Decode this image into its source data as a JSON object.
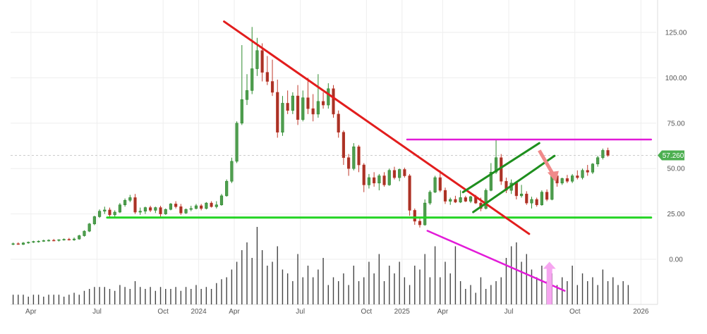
{
  "chart_data": {
    "type": "candlestick",
    "title": "",
    "grid": true,
    "colors": {
      "up": "#2e8b2e",
      "down": "#c0392b",
      "up_fill": "#4f9d4f",
      "down_fill": "#a83226",
      "volume": "#444444",
      "grid": "#eeeeee"
    },
    "y_axis": {
      "position": "right",
      "ticks": [
        "125.00",
        "100.00",
        "75.00",
        "50.00",
        "25.00",
        "0.00"
      ],
      "range": [
        -25,
        145
      ]
    },
    "x_axis": {
      "ticks": [
        "Apr",
        "Jul",
        "Oct",
        "2024",
        "Apr",
        "Jul",
        "Oct",
        "2025",
        "Apr",
        "Jul",
        "Oct",
        "2026"
      ]
    },
    "last_price": {
      "label": "57.260",
      "value": 57.26,
      "color": "#4caf50"
    },
    "candles": [
      {
        "o": 8.5,
        "h": 9.2,
        "l": 7.8,
        "c": 8.6
      },
      {
        "o": 8.6,
        "h": 9.3,
        "l": 8.0,
        "c": 8.2
      },
      {
        "o": 8.2,
        "h": 9.5,
        "l": 7.9,
        "c": 9.0
      },
      {
        "o": 9.0,
        "h": 9.8,
        "l": 8.6,
        "c": 9.4
      },
      {
        "o": 9.4,
        "h": 10.2,
        "l": 9.0,
        "c": 9.8
      },
      {
        "o": 9.8,
        "h": 10.4,
        "l": 9.2,
        "c": 10.0
      },
      {
        "o": 10.0,
        "h": 10.8,
        "l": 9.6,
        "c": 10.3
      },
      {
        "o": 10.3,
        "h": 11.0,
        "l": 9.8,
        "c": 10.5
      },
      {
        "o": 10.5,
        "h": 11.2,
        "l": 10.0,
        "c": 10.4
      },
      {
        "o": 10.4,
        "h": 11.0,
        "l": 9.8,
        "c": 10.8
      },
      {
        "o": 10.8,
        "h": 11.5,
        "l": 10.3,
        "c": 11.0
      },
      {
        "o": 11.0,
        "h": 11.8,
        "l": 10.4,
        "c": 10.7
      },
      {
        "o": 10.7,
        "h": 12.0,
        "l": 10.2,
        "c": 11.2
      },
      {
        "o": 11.2,
        "h": 13.5,
        "l": 10.8,
        "c": 13.0
      },
      {
        "o": 13.0,
        "h": 16.0,
        "l": 12.5,
        "c": 15.5
      },
      {
        "o": 15.5,
        "h": 20.0,
        "l": 15.0,
        "c": 19.5
      },
      {
        "o": 19.5,
        "h": 24.0,
        "l": 18.8,
        "c": 23.5
      },
      {
        "o": 23.5,
        "h": 27.5,
        "l": 22.8,
        "c": 26.5
      },
      {
        "o": 26.5,
        "h": 29.0,
        "l": 25.0,
        "c": 27.2
      },
      {
        "o": 27.2,
        "h": 28.5,
        "l": 22.5,
        "c": 24.5
      },
      {
        "o": 24.5,
        "h": 27.0,
        "l": 23.0,
        "c": 26.0
      },
      {
        "o": 26.0,
        "h": 31.0,
        "l": 25.5,
        "c": 30.0
      },
      {
        "o": 30.0,
        "h": 33.5,
        "l": 29.0,
        "c": 32.5
      },
      {
        "o": 32.5,
        "h": 35.5,
        "l": 31.5,
        "c": 34.0
      },
      {
        "o": 34.0,
        "h": 36.0,
        "l": 25.0,
        "c": 26.0
      },
      {
        "o": 26.0,
        "h": 28.5,
        "l": 24.5,
        "c": 26.5
      },
      {
        "o": 26.5,
        "h": 29.0,
        "l": 25.0,
        "c": 28.5
      },
      {
        "o": 28.5,
        "h": 29.5,
        "l": 26.0,
        "c": 27.0
      },
      {
        "o": 27.0,
        "h": 29.0,
        "l": 25.5,
        "c": 28.5
      },
      {
        "o": 28.5,
        "h": 29.5,
        "l": 23.5,
        "c": 25.0
      },
      {
        "o": 25.0,
        "h": 28.0,
        "l": 24.5,
        "c": 27.5
      },
      {
        "o": 27.5,
        "h": 31.0,
        "l": 27.0,
        "c": 30.5
      },
      {
        "o": 30.5,
        "h": 32.0,
        "l": 28.0,
        "c": 29.0
      },
      {
        "o": 29.0,
        "h": 30.5,
        "l": 24.5,
        "c": 25.5
      },
      {
        "o": 25.5,
        "h": 28.0,
        "l": 25.0,
        "c": 27.5
      },
      {
        "o": 27.5,
        "h": 29.5,
        "l": 26.5,
        "c": 28.0
      },
      {
        "o": 28.0,
        "h": 30.5,
        "l": 27.5,
        "c": 29.5
      },
      {
        "o": 29.5,
        "h": 30.5,
        "l": 27.0,
        "c": 28.0
      },
      {
        "o": 28.0,
        "h": 31.5,
        "l": 27.5,
        "c": 31.0
      },
      {
        "o": 31.0,
        "h": 32.0,
        "l": 28.5,
        "c": 29.0
      },
      {
        "o": 29.0,
        "h": 32.0,
        "l": 28.0,
        "c": 30.0
      },
      {
        "o": 30.0,
        "h": 36.0,
        "l": 29.5,
        "c": 35.0
      },
      {
        "o": 35.0,
        "h": 44.0,
        "l": 34.5,
        "c": 43.0
      },
      {
        "o": 43.0,
        "h": 56.0,
        "l": 42.0,
        "c": 54.0
      },
      {
        "o": 54.0,
        "h": 76.0,
        "l": 53.0,
        "c": 75.0
      },
      {
        "o": 75.0,
        "h": 118.0,
        "l": 74.0,
        "c": 88.0
      },
      {
        "o": 88.0,
        "h": 102.0,
        "l": 85.0,
        "c": 93.0
      },
      {
        "o": 93.0,
        "h": 128.0,
        "l": 91.0,
        "c": 105.0
      },
      {
        "o": 105.0,
        "h": 122.0,
        "l": 101.0,
        "c": 115.0
      },
      {
        "o": 115.0,
        "h": 119.0,
        "l": 98.0,
        "c": 103.0
      },
      {
        "o": 103.0,
        "h": 112.0,
        "l": 96.0,
        "c": 98.0
      },
      {
        "o": 98.0,
        "h": 110.0,
        "l": 90.0,
        "c": 92.0
      },
      {
        "o": 92.0,
        "h": 99.0,
        "l": 67.0,
        "c": 70.0
      },
      {
        "o": 70.0,
        "h": 90.0,
        "l": 68.0,
        "c": 86.0
      },
      {
        "o": 86.0,
        "h": 93.0,
        "l": 80.0,
        "c": 82.0
      },
      {
        "o": 82.0,
        "h": 92.0,
        "l": 80.0,
        "c": 90.0
      },
      {
        "o": 90.0,
        "h": 96.0,
        "l": 74.0,
        "c": 77.0
      },
      {
        "o": 77.0,
        "h": 93.0,
        "l": 76.0,
        "c": 89.0
      },
      {
        "o": 89.0,
        "h": 100.0,
        "l": 80.0,
        "c": 83.0
      },
      {
        "o": 83.0,
        "h": 91.0,
        "l": 76.0,
        "c": 80.0
      },
      {
        "o": 80.0,
        "h": 102.0,
        "l": 78.0,
        "c": 87.0
      },
      {
        "o": 87.0,
        "h": 92.0,
        "l": 83.0,
        "c": 85.0
      },
      {
        "o": 85.0,
        "h": 97.0,
        "l": 83.0,
        "c": 94.0
      },
      {
        "o": 94.0,
        "h": 96.0,
        "l": 78.0,
        "c": 80.0
      },
      {
        "o": 80.0,
        "h": 82.0,
        "l": 67.0,
        "c": 70.0
      },
      {
        "o": 70.0,
        "h": 71.0,
        "l": 52.0,
        "c": 56.0
      },
      {
        "o": 56.0,
        "h": 58.0,
        "l": 46.0,
        "c": 50.0
      },
      {
        "o": 50.0,
        "h": 64.0,
        "l": 49.0,
        "c": 62.0
      },
      {
        "o": 62.0,
        "h": 63.0,
        "l": 48.0,
        "c": 52.0
      },
      {
        "o": 52.0,
        "h": 53.0,
        "l": 37.0,
        "c": 41.0
      },
      {
        "o": 41.0,
        "h": 47.0,
        "l": 39.0,
        "c": 45.0
      },
      {
        "o": 45.0,
        "h": 48.0,
        "l": 40.0,
        "c": 42.0
      },
      {
        "o": 42.0,
        "h": 47.0,
        "l": 38.0,
        "c": 46.0
      },
      {
        "o": 46.0,
        "h": 48.0,
        "l": 40.0,
        "c": 41.0
      },
      {
        "o": 41.0,
        "h": 50.0,
        "l": 40.5,
        "c": 49.0
      },
      {
        "o": 49.0,
        "h": 51.0,
        "l": 44.0,
        "c": 45.0
      },
      {
        "o": 45.0,
        "h": 50.0,
        "l": 43.0,
        "c": 49.5
      },
      {
        "o": 49.5,
        "h": 50.5,
        "l": 45.0,
        "c": 46.0
      },
      {
        "o": 46.0,
        "h": 47.0,
        "l": 24.0,
        "c": 27.0
      },
      {
        "o": 27.0,
        "h": 28.0,
        "l": 19.0,
        "c": 21.0
      },
      {
        "o": 21.0,
        "h": 23.0,
        "l": 17.5,
        "c": 19.0
      },
      {
        "o": 19.0,
        "h": 33.0,
        "l": 18.5,
        "c": 31.0
      },
      {
        "o": 31.0,
        "h": 38.0,
        "l": 30.0,
        "c": 37.0
      },
      {
        "o": 37.0,
        "h": 46.0,
        "l": 36.5,
        "c": 45.0
      },
      {
        "o": 45.0,
        "h": 49.0,
        "l": 37.0,
        "c": 38.0
      },
      {
        "o": 38.0,
        "h": 39.5,
        "l": 30.5,
        "c": 32.0
      },
      {
        "o": 32.0,
        "h": 34.0,
        "l": 30.0,
        "c": 33.0
      },
      {
        "o": 33.0,
        "h": 35.0,
        "l": 31.0,
        "c": 31.5
      },
      {
        "o": 31.5,
        "h": 38.0,
        "l": 31.0,
        "c": 34.0
      },
      {
        "o": 34.0,
        "h": 35.0,
        "l": 31.5,
        "c": 32.0
      },
      {
        "o": 32.0,
        "h": 35.0,
        "l": 31.0,
        "c": 34.5
      },
      {
        "o": 34.5,
        "h": 35.5,
        "l": 30.5,
        "c": 31.0
      },
      {
        "o": 31.0,
        "h": 34.0,
        "l": 26.5,
        "c": 28.0
      },
      {
        "o": 28.0,
        "h": 39.0,
        "l": 27.5,
        "c": 38.0
      },
      {
        "o": 38.0,
        "h": 53.0,
        "l": 37.5,
        "c": 48.0
      },
      {
        "o": 48.0,
        "h": 66.0,
        "l": 47.0,
        "c": 56.0
      },
      {
        "o": 56.0,
        "h": 58.0,
        "l": 41.0,
        "c": 43.0
      },
      {
        "o": 43.0,
        "h": 45.0,
        "l": 36.5,
        "c": 38.0
      },
      {
        "o": 38.0,
        "h": 44.0,
        "l": 36.0,
        "c": 42.0
      },
      {
        "o": 42.0,
        "h": 43.0,
        "l": 33.0,
        "c": 35.0
      },
      {
        "o": 35.0,
        "h": 41.0,
        "l": 34.0,
        "c": 36.0
      },
      {
        "o": 36.0,
        "h": 37.5,
        "l": 30.0,
        "c": 31.0
      },
      {
        "o": 31.0,
        "h": 34.5,
        "l": 28.0,
        "c": 33.0
      },
      {
        "o": 33.0,
        "h": 34.0,
        "l": 29.0,
        "c": 30.0
      },
      {
        "o": 30.0,
        "h": 38.0,
        "l": 29.5,
        "c": 37.0
      },
      {
        "o": 37.0,
        "h": 38.5,
        "l": 32.0,
        "c": 33.0
      },
      {
        "o": 33.0,
        "h": 47.0,
        "l": 32.5,
        "c": 46.0
      },
      {
        "o": 46.0,
        "h": 48.0,
        "l": 40.0,
        "c": 42.0
      },
      {
        "o": 42.0,
        "h": 45.0,
        "l": 41.0,
        "c": 44.5
      },
      {
        "o": 44.5,
        "h": 46.5,
        "l": 42.0,
        "c": 43.0
      },
      {
        "o": 43.0,
        "h": 47.0,
        "l": 42.0,
        "c": 46.0
      },
      {
        "o": 46.0,
        "h": 49.0,
        "l": 44.0,
        "c": 45.0
      },
      {
        "o": 45.0,
        "h": 50.0,
        "l": 44.0,
        "c": 49.0
      },
      {
        "o": 49.0,
        "h": 52.0,
        "l": 46.0,
        "c": 48.0
      },
      {
        "o": 48.0,
        "h": 53.0,
        "l": 47.0,
        "c": 52.5
      },
      {
        "o": 52.5,
        "h": 57.0,
        "l": 51.0,
        "c": 56.0
      },
      {
        "o": 56.0,
        "h": 61.0,
        "l": 55.0,
        "c": 60.0
      },
      {
        "o": 60.0,
        "h": 61.5,
        "l": 56.5,
        "c": 57.26
      }
    ],
    "volume": [
      5,
      5,
      5,
      4,
      5,
      5,
      4,
      5,
      5,
      5,
      4,
      5,
      6,
      5,
      7,
      8,
      9,
      9,
      9,
      8,
      7,
      10,
      9,
      8,
      12,
      9,
      8,
      9,
      7,
      9,
      8,
      8,
      9,
      7,
      9,
      8,
      10,
      8,
      9,
      8,
      11,
      13,
      14,
      18,
      22,
      28,
      32,
      24,
      40,
      28,
      20,
      22,
      30,
      18,
      16,
      12,
      26,
      14,
      20,
      14,
      18,
      24,
      10,
      14,
      12,
      16,
      10,
      20,
      12,
      14,
      22,
      16,
      26,
      12,
      20,
      16,
      22,
      14,
      10,
      20,
      18,
      26,
      14,
      30,
      14,
      22,
      16,
      30,
      12,
      8,
      10,
      6,
      14,
      8,
      10,
      12,
      14,
      24,
      30,
      32,
      22,
      26,
      18,
      14,
      20,
      12,
      16,
      10,
      14,
      12,
      20,
      10,
      16,
      12,
      14,
      10,
      18,
      12,
      14,
      10,
      12,
      10
    ],
    "vol_range": [
      0,
      40
    ],
    "x_tick_index": {
      "Apr": [
        4,
        44,
        85
      ],
      "Jul": [
        17,
        57,
        98
      ],
      "Oct": [
        30,
        70,
        111
      ],
      "2024": [
        37
      ],
      "2025": [
        77
      ],
      "2026": [
        124
      ]
    },
    "overlays": {
      "red_trendline": {
        "from": {
          "i": 42,
          "v": 131
        },
        "to": {
          "i": 102,
          "v": 14
        },
        "color": "#e21d1d"
      },
      "green_support": {
        "from": {
          "i": 19,
          "v": 23
        },
        "to": {
          "i": 126,
          "v": 23
        },
        "color": "#22d422"
      },
      "magenta_resistance": {
        "from": {
          "i": 78,
          "v": 66
        },
        "to": {
          "i": 126,
          "v": 66
        },
        "color": "#e21bd8"
      },
      "channel_upper": {
        "from": {
          "i": 89,
          "v": 37
        },
        "to": {
          "i": 104,
          "v": 64
        },
        "color": "#1e8f1e"
      },
      "channel_lower": {
        "from": {
          "i": 91,
          "v": 26
        },
        "to": {
          "i": 107,
          "v": 57
        },
        "color": "#1e8f1e"
      },
      "volume_trendline": {
        "from": {
          "i": 82,
          "v": 38
        },
        "to": {
          "i": 109,
          "v": 7
        },
        "color": "#e21bd8"
      },
      "down_arrow": {
        "from": {
          "i": 104,
          "v": 60
        },
        "to": {
          "i": 107,
          "v": 44
        },
        "color": "#f08a8a"
      },
      "up_arrow": {
        "i": 106,
        "from_v": 0,
        "to_v": 22,
        "color": "#f6a6f0"
      }
    }
  }
}
